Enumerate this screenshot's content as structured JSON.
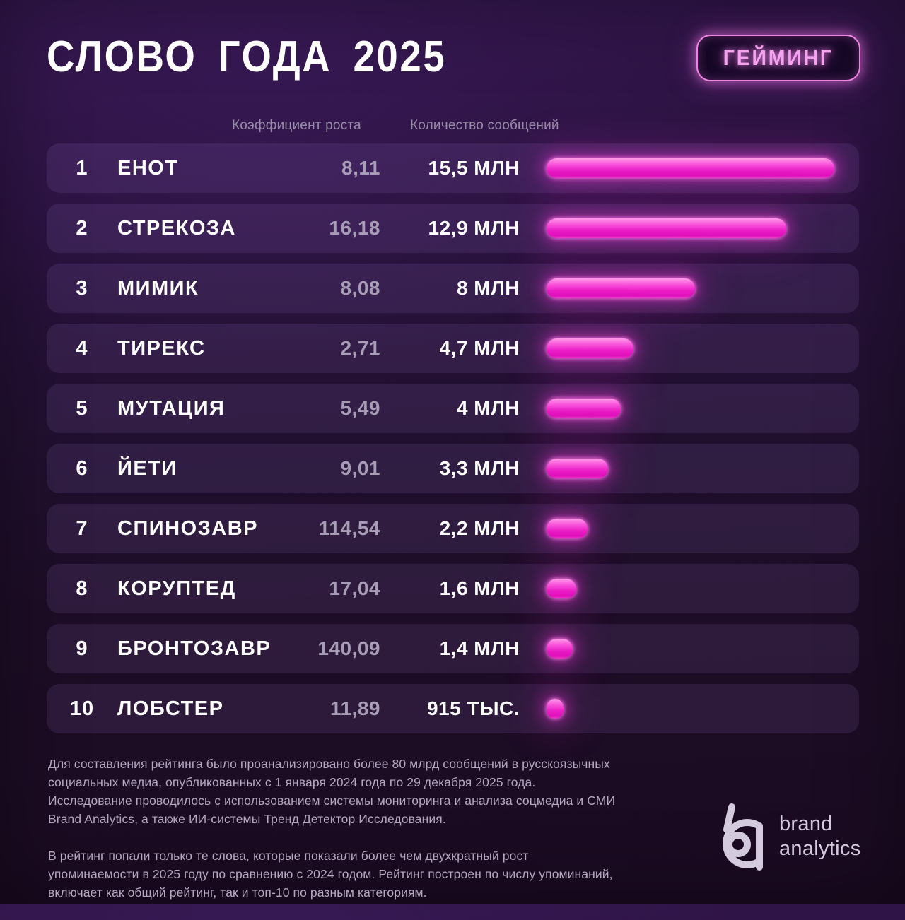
{
  "page": {
    "title": "СЛОВО ГОДА 2025",
    "badge": "ГЕЙМИНГ"
  },
  "table": {
    "headers": {
      "growth": "Коэффициент роста",
      "messages": "Количество сообщений"
    },
    "max_value": 15.5,
    "rows": [
      {
        "rank": "1",
        "word": "ЕНОТ",
        "growth": "8,11",
        "messages": "15,5 млн",
        "messages_value": 15.5
      },
      {
        "rank": "2",
        "word": "СТРЕКОЗА",
        "growth": "16,18",
        "messages": "12,9 млн",
        "messages_value": 12.9
      },
      {
        "rank": "3",
        "word": "МИМИК",
        "growth": "8,08",
        "messages": "8 млн",
        "messages_value": 8
      },
      {
        "rank": "4",
        "word": "ТИРЕКС",
        "growth": "2,71",
        "messages": "4,7 млн",
        "messages_value": 4.7
      },
      {
        "rank": "5",
        "word": "МУТАЦИЯ",
        "growth": "5,49",
        "messages": "4 млн",
        "messages_value": 4
      },
      {
        "rank": "6",
        "word": "ЙЕТИ",
        "growth": "9,01",
        "messages": "3,3 млн",
        "messages_value": 3.3
      },
      {
        "rank": "7",
        "word": "СПИНОЗАВР",
        "growth": "114,54",
        "messages": "2,2 млн",
        "messages_value": 2.2
      },
      {
        "rank": "8",
        "word": "КОРУПТЕД",
        "growth": "17,04",
        "messages": "1,6 млн",
        "messages_value": 1.6
      },
      {
        "rank": "9",
        "word": "БРОНТОЗАВР",
        "growth": "140,09",
        "messages": "1,4 млн",
        "messages_value": 1.4
      },
      {
        "rank": "10",
        "word": "ЛОБСТЕР",
        "growth": "11,89",
        "messages": "915 тыс.",
        "messages_value": 0.915
      }
    ]
  },
  "footer": {
    "paragraph1": "Для составления рейтинга было проанализировано более 80 млрд сообщений в русскоязычных социальных медиа, опубликованных с 1 января 2024 года по 29 декабря 2025 года. Исследование проводилось с использованием системы мониторинга и анализа соцмедиа и СМИ Brand Analytics, а также ИИ-системы Тренд Детектор Исследования.",
    "paragraph2": "В рейтинг попали только те слова, которые показали более чем двухкратный рост упоминаемости в 2025 году по сравнению с 2024 годом. Рейтинг построен по числу упоминаний, включает как общий рейтинг, так и топ-10 по разным категориям.",
    "logo_line1": "brand",
    "logo_line2": "analytics"
  },
  "colors": {
    "background_top": "#301549",
    "background_bottom": "#1a0a21",
    "row_background": "rgba(195,160,255,0.10)",
    "bar_pink": "#ee1fc8",
    "badge_pink": "#f6a3ef",
    "badge_border": "#ef87e5",
    "text_white": "#ffffff",
    "text_muted": "#a89db6",
    "text_footnote": "#b4a9c1",
    "logo_gray": "#d3cade"
  },
  "chart_data": {
    "type": "bar",
    "orientation": "horizontal",
    "title": "СЛОВО ГОДА 2025",
    "category_label": "ГЕЙМИНГ",
    "categories": [
      "ЕНОТ",
      "СТРЕКОЗА",
      "МИМИК",
      "ТИРЕКС",
      "МУТАЦИЯ",
      "ЙЕТИ",
      "СПИНОЗАВР",
      "КОРУПТЕД",
      "БРОНТОЗАВР",
      "ЛОБСТЕР"
    ],
    "series": [
      {
        "name": "Коэффициент роста",
        "values": [
          8.11,
          16.18,
          8.08,
          2.71,
          5.49,
          9.01,
          114.54,
          17.04,
          140.09,
          11.89
        ]
      },
      {
        "name": "Количество сообщений (млн)",
        "values": [
          15.5,
          12.9,
          8,
          4.7,
          4,
          3.3,
          2.2,
          1.6,
          1.4,
          0.915
        ]
      }
    ],
    "value_labels": [
      "15,5 млн",
      "12,9 млн",
      "8 млн",
      "4,7 млн",
      "4 млн",
      "3,3 млн",
      "2,2 млн",
      "1,6 млн",
      "1,4 млн",
      "915 тыс."
    ],
    "xlim": [
      0,
      15.5
    ],
    "bar_color": "#ee1fc8",
    "grid": false,
    "legend_position": "none"
  }
}
